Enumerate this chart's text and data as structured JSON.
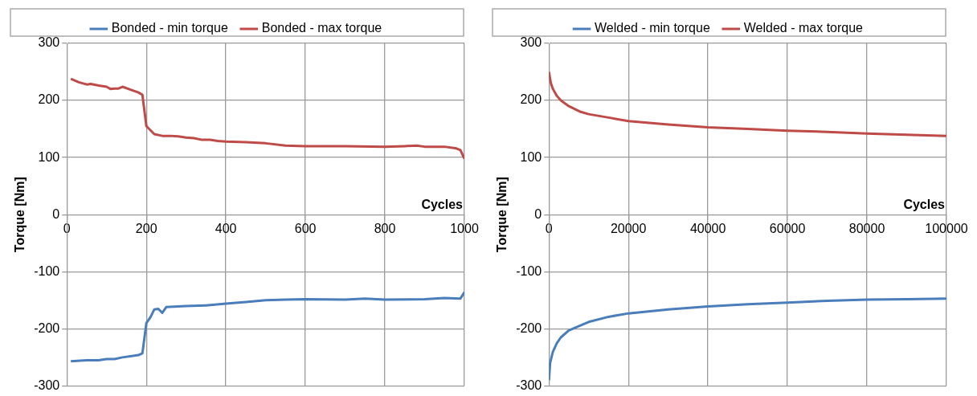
{
  "chart_data": [
    {
      "type": "line",
      "xlabel": "Cycles",
      "ylabel": "Torque [Nm]",
      "xlim": [
        0,
        1000
      ],
      "xticks": [
        0,
        200,
        400,
        600,
        800,
        1000
      ],
      "ylim": [
        -300,
        300
      ],
      "yticks": [
        -300,
        -200,
        -100,
        0,
        100,
        200,
        300
      ],
      "grid": true,
      "legend": "top",
      "marker": "none",
      "line_style": "solid",
      "series": [
        {
          "name": "Bonded - min torque",
          "color": "#4a7ebb",
          "x": [
            10,
            50,
            80,
            100,
            120,
            140,
            160,
            180,
            190,
            200,
            210,
            220,
            230,
            240,
            250,
            300,
            350,
            400,
            450,
            500,
            550,
            600,
            700,
            750,
            800,
            900,
            950,
            990,
            1000
          ],
          "values": [
            -257,
            -255,
            -255,
            -253,
            -253,
            -250,
            -248,
            -246,
            -243,
            -190,
            -180,
            -166,
            -165,
            -172,
            -162,
            -160,
            -159,
            -156,
            -153,
            -150,
            -149,
            -148,
            -149,
            -147,
            -149,
            -148,
            -146,
            -147,
            -136
          ]
        },
        {
          "name": "Bonded - max torque",
          "color": "#be4b48",
          "x": [
            10,
            30,
            50,
            60,
            80,
            100,
            110,
            120,
            130,
            140,
            160,
            180,
            190,
            200,
            220,
            240,
            260,
            280,
            300,
            320,
            340,
            360,
            380,
            400,
            450,
            500,
            550,
            600,
            700,
            800,
            850,
            880,
            900,
            950,
            980,
            990,
            1000
          ],
          "values": [
            238,
            232,
            228,
            229,
            226,
            224,
            220,
            221,
            221,
            224,
            219,
            214,
            210,
            155,
            141,
            138,
            138,
            137,
            135,
            134,
            131,
            131,
            129,
            128,
            127,
            125,
            121,
            120,
            120,
            119,
            120,
            121,
            119,
            119,
            116,
            113,
            98
          ]
        }
      ]
    },
    {
      "type": "line",
      "xlabel": "Cycles",
      "ylabel": "Torque [Nm]",
      "xlim": [
        0,
        100000
      ],
      "xticks": [
        0,
        20000,
        40000,
        60000,
        80000,
        100000
      ],
      "ylim": [
        -300,
        300
      ],
      "yticks": [
        -300,
        -200,
        -100,
        0,
        100,
        200,
        300
      ],
      "grid": true,
      "legend": "top",
      "marker": "none",
      "line_style": "solid",
      "series": [
        {
          "name": "Welded - min torque",
          "color": "#4a7ebb",
          "x": [
            0,
            300,
            1000,
            2000,
            3000,
            5000,
            7000,
            10000,
            15000,
            20000,
            30000,
            40000,
            50000,
            60000,
            70000,
            80000,
            90000,
            100000
          ],
          "values": [
            -290,
            -260,
            -240,
            -225,
            -215,
            -203,
            -197,
            -188,
            -179,
            -173,
            -166,
            -161,
            -157,
            -154,
            -151,
            -149,
            -148,
            -147
          ]
        },
        {
          "name": "Welded - max torque",
          "color": "#be4b48",
          "x": [
            0,
            500,
            1000,
            2000,
            3000,
            5000,
            8000,
            10000,
            15000,
            20000,
            30000,
            40000,
            50000,
            60000,
            70000,
            80000,
            90000,
            100000
          ],
          "values": [
            250,
            230,
            220,
            208,
            200,
            190,
            180,
            176,
            170,
            164,
            158,
            153,
            150,
            147,
            145,
            142,
            140,
            138
          ]
        }
      ]
    }
  ]
}
